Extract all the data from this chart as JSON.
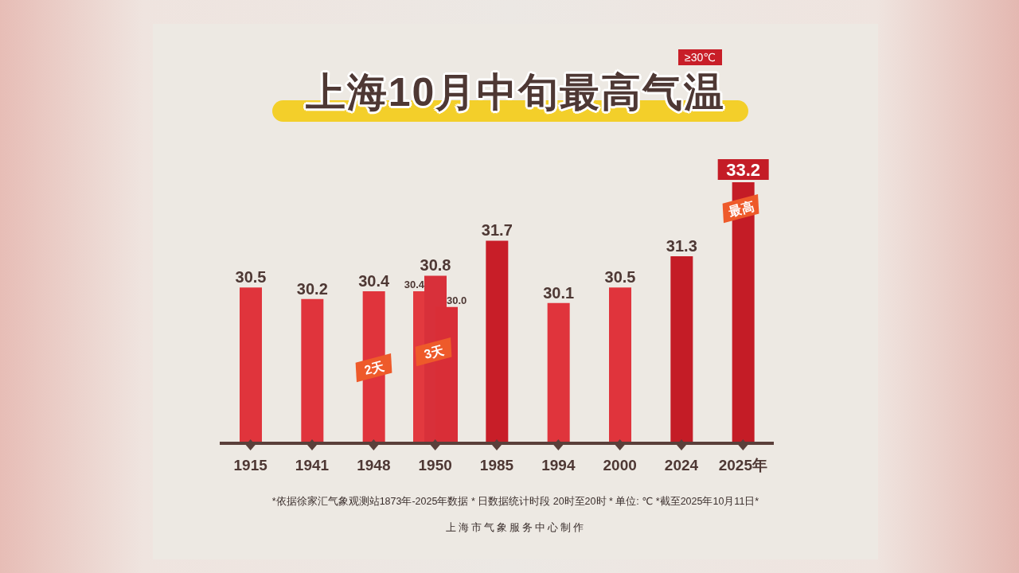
{
  "chart_data": {
    "type": "bar",
    "title": "上海10月中旬最高气温",
    "categories": [
      "1915",
      "1941",
      "1948",
      "1950",
      "1985",
      "1994",
      "2000",
      "2024",
      "2025年"
    ],
    "series": [
      {
        "color": "#e2393f",
        "values": [
          null,
          null,
          null,
          30.4,
          null,
          null,
          null,
          null,
          null
        ],
        "value_labels": [
          null,
          null,
          null,
          "30.4",
          null,
          null,
          null,
          null,
          null
        ]
      },
      {
        "colors": [
          "#e0343c",
          "#e0343c",
          "#e0343c",
          "#d8303a",
          "#c81e28",
          "#e0343c",
          "#e0343c",
          "#c41c26",
          "#c41c26"
        ],
        "values": [
          30.5,
          30.2,
          30.4,
          30.8,
          31.7,
          30.1,
          30.5,
          31.3,
          33.2
        ],
        "value_labels": [
          "30.5",
          "30.2",
          "30.4",
          "30.8",
          "31.7",
          "30.1",
          "30.5",
          "31.3",
          "33.2"
        ]
      },
      {
        "color": "#d92e37",
        "values": [
          null,
          null,
          null,
          30.0,
          null,
          null,
          null,
          null,
          null
        ],
        "value_labels": [
          null,
          null,
          null,
          "30.0",
          null,
          null,
          null,
          null,
          null
        ]
      }
    ],
    "ylim": [
      26.5,
      33.2
    ],
    "tick_labels": "x",
    "annotations": [
      "≥30℃",
      "2天",
      "3天",
      "最高",
      "*依据徐家汇气象观测站1873年-2025年数据 * 日数据统计时段 20时至20时 * 单位: ℃ *截至2025年10月11日*",
      "上海市气象服务中心制作"
    ]
  }
}
